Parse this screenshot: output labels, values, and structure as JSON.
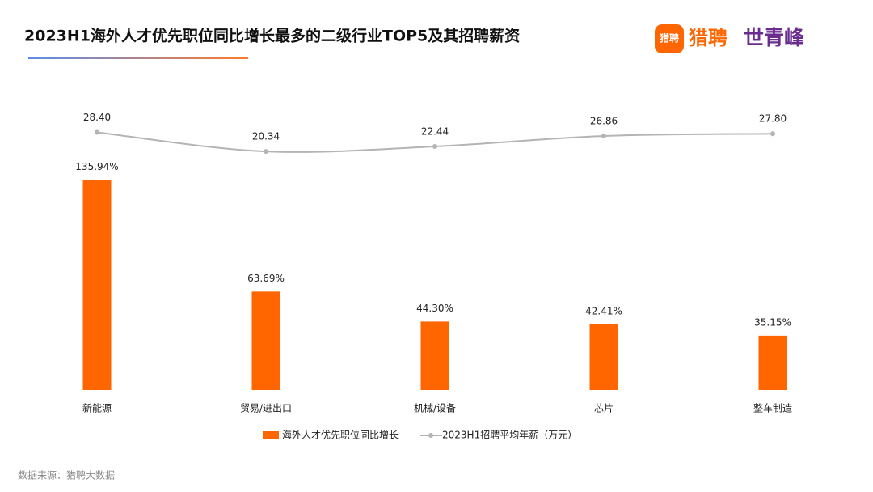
{
  "chart_data": {
    "type": "bar-line",
    "title": "2023H1海外人才优先职位同比增长最多的二级行业TOP5及其招聘薪资",
    "categories": [
      "新能源",
      "贸易/进出口",
      "机械/设备",
      "芯片",
      "整车制造"
    ],
    "series": [
      {
        "name": "海外人才优先职位同比增长",
        "type": "bar",
        "color": "#ff6600",
        "values": [
          135.94,
          63.69,
          44.3,
          42.41,
          35.15
        ],
        "value_labels": [
          "135.94%",
          "63.69%",
          "44.30%",
          "42.41%",
          "35.15%"
        ]
      },
      {
        "name": "2023H1招聘平均年薪（万元）",
        "type": "line",
        "axis": "y2",
        "color": "#b4b4b4",
        "values": [
          28.4,
          20.34,
          22.44,
          26.86,
          27.8
        ],
        "value_labels": [
          "28.40",
          "20.34",
          "22.44",
          "26.86",
          "27.80"
        ]
      }
    ],
    "ylim": [
      0,
      200
    ],
    "y2lim": [
      -80,
      50
    ],
    "legend": "bottom"
  },
  "logo": {
    "icon": "猎聘",
    "brand": "猎聘",
    "partner": "世青峰"
  },
  "source": "数据来源：猎聘大数据"
}
